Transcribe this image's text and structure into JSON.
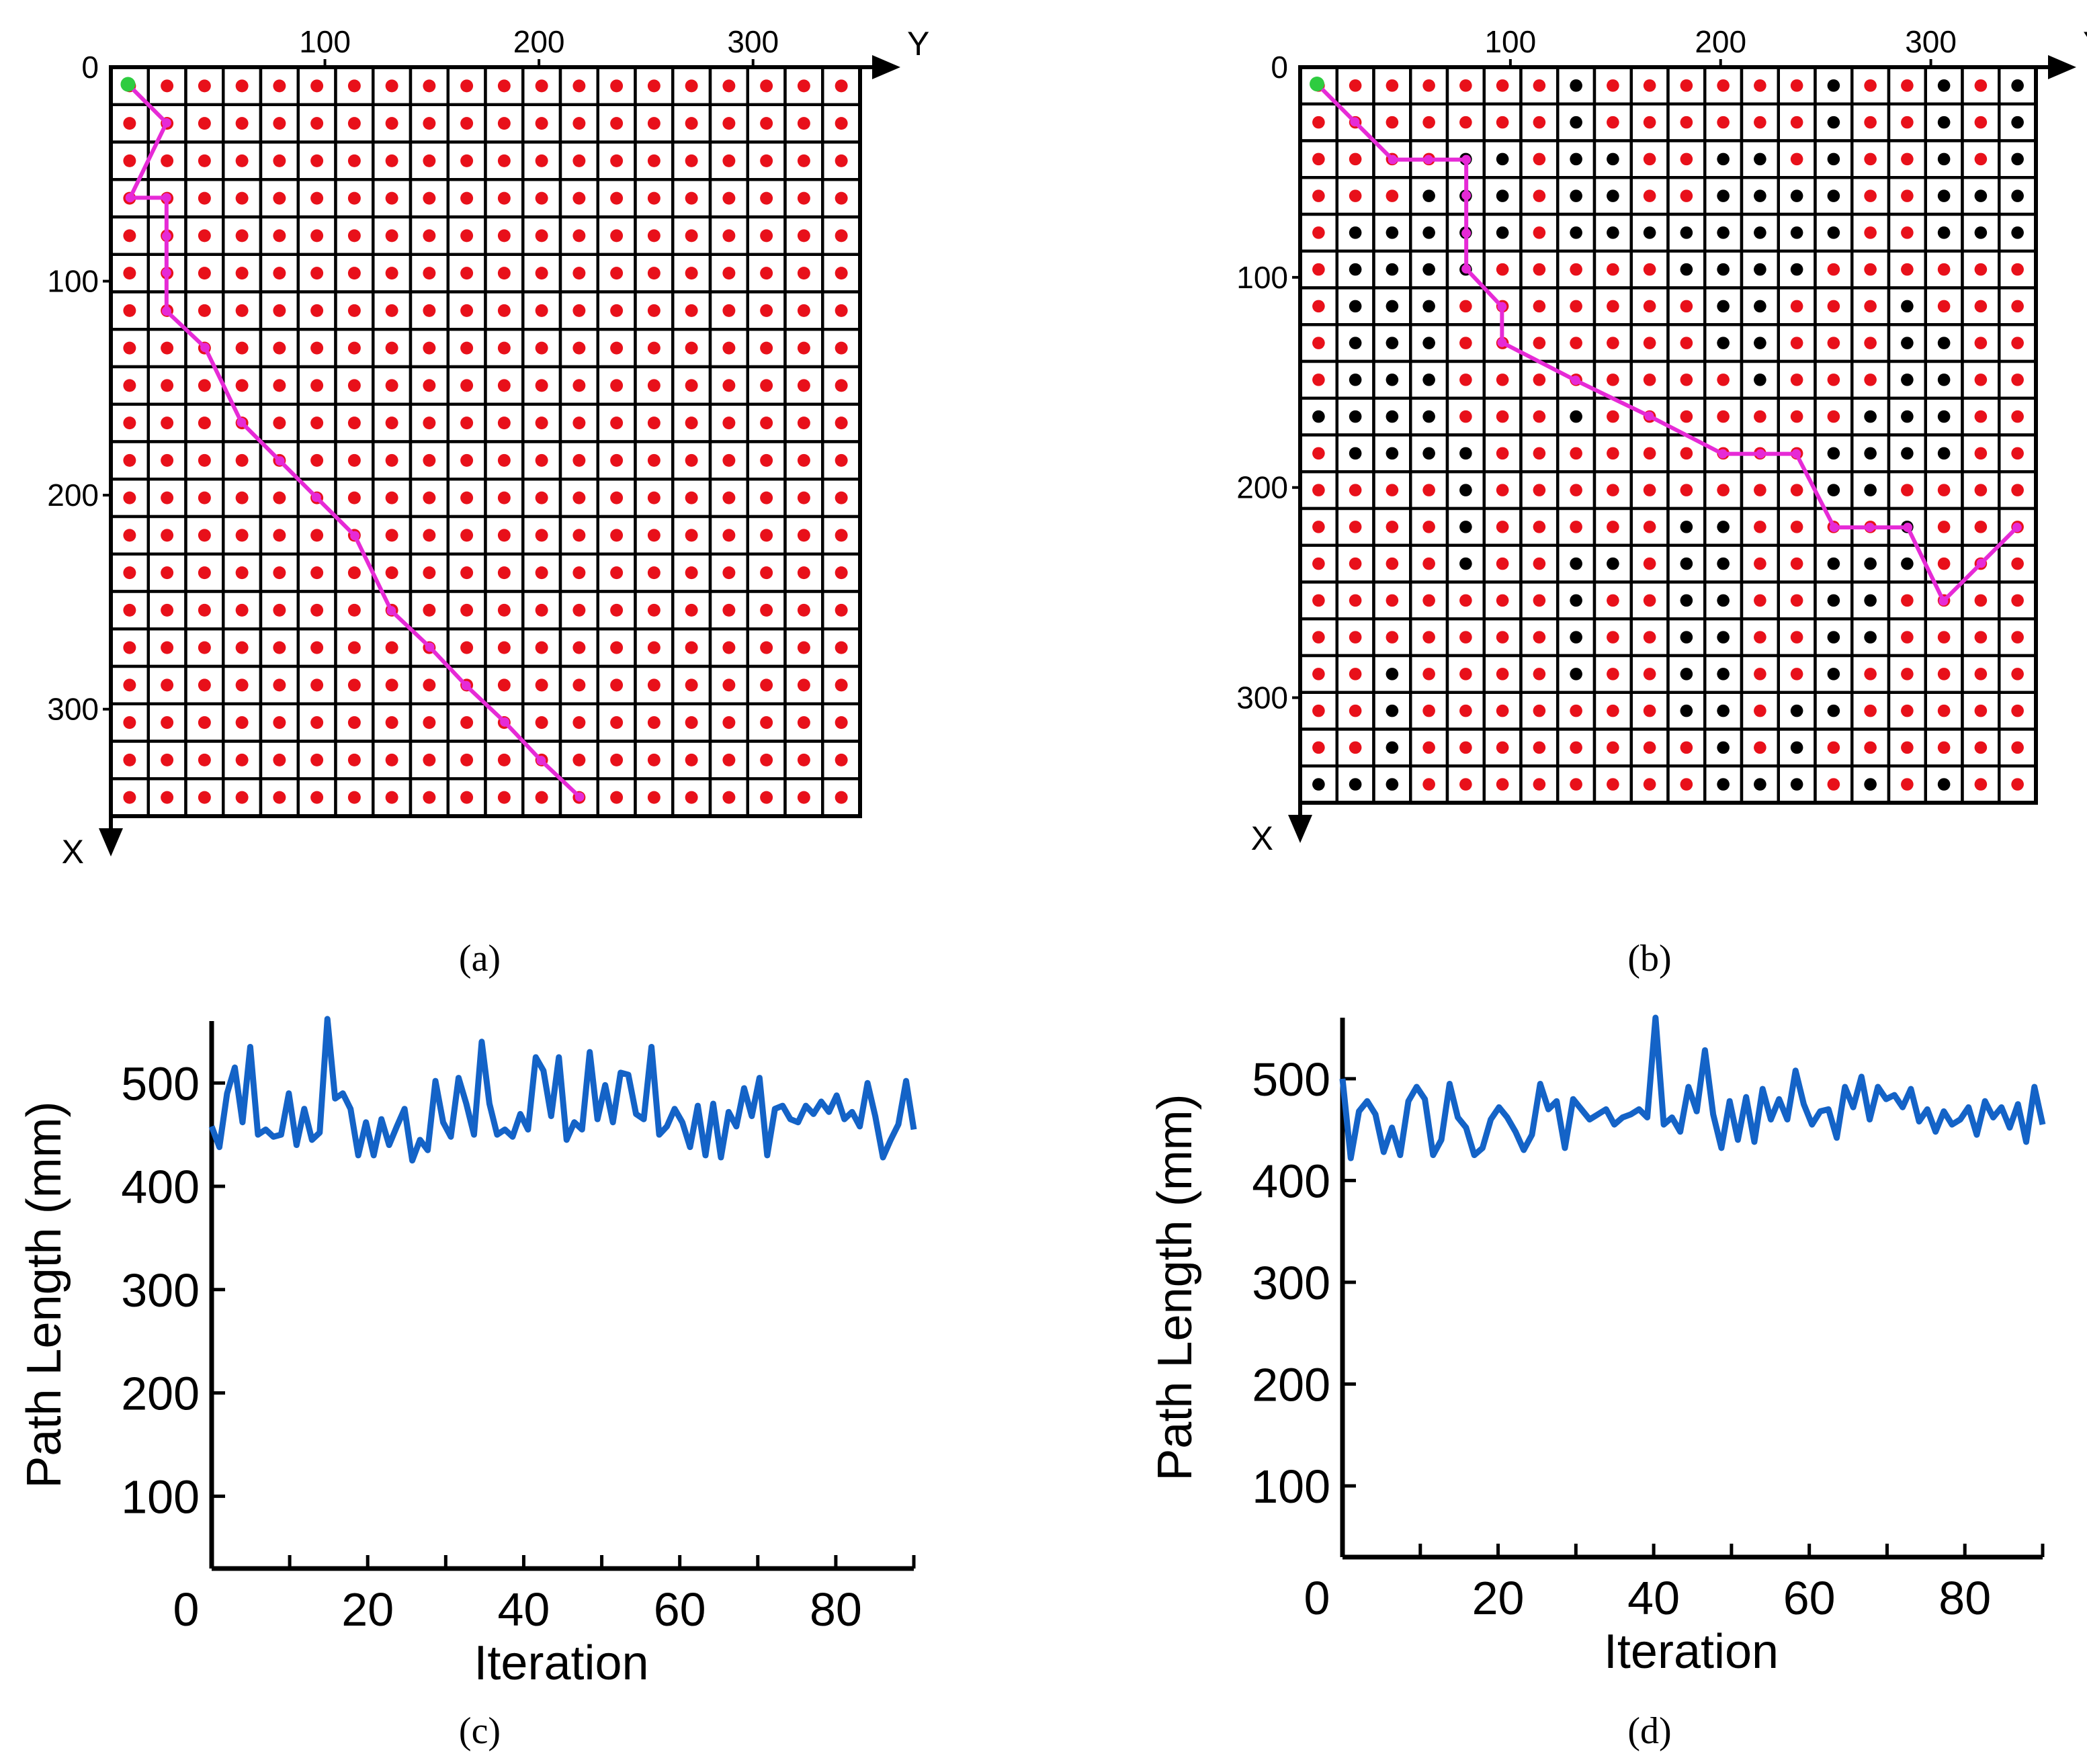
{
  "chart_data": [
    {
      "panel": "(a)",
      "type": "scatter",
      "title": "",
      "xlabel": "Y",
      "ylabel": "X",
      "x_ticks": [
        0,
        100,
        200,
        300
      ],
      "y_ticks": [
        0,
        100,
        200,
        300
      ],
      "xlim": [
        0,
        350
      ],
      "ylim": [
        0,
        350
      ],
      "grid_rows": 20,
      "grid_cols": 20,
      "cell_size": 17.5,
      "colors": {
        "free": "#e8101a",
        "obstacle": "#000000",
        "start": "#2ecc40",
        "path": "#e62ad6"
      },
      "start": [
        8,
        8
      ],
      "obstacles": [],
      "path": [
        [
          8,
          8
        ],
        [
          26,
          26
        ],
        [
          61,
          9
        ],
        [
          61,
          26
        ],
        [
          79,
          26
        ],
        [
          96,
          26
        ],
        [
          114,
          26
        ],
        [
          131,
          44
        ],
        [
          166,
          61
        ],
        [
          184,
          79
        ],
        [
          201,
          96
        ],
        [
          219,
          114
        ],
        [
          254,
          131
        ],
        [
          271,
          149
        ],
        [
          289,
          166
        ],
        [
          306,
          184
        ],
        [
          324,
          201
        ],
        [
          341,
          219
        ]
      ]
    },
    {
      "panel": "(b)",
      "type": "scatter",
      "title": "",
      "xlabel": "Y",
      "ylabel": "X",
      "x_ticks": [
        0,
        100,
        200,
        300
      ],
      "y_ticks": [
        0,
        100,
        200,
        300
      ],
      "xlim": [
        0,
        350
      ],
      "ylim": [
        0,
        350
      ],
      "grid_rows": 20,
      "grid_cols": 20,
      "cell_size": 17.5,
      "colors": {
        "free": "#e8101a",
        "obstacle": "#000000",
        "start": "#2ecc40",
        "path": "#e62ad6"
      },
      "start": [
        8,
        8
      ],
      "obstacles": [
        [
          0,
          7
        ],
        [
          0,
          14
        ],
        [
          0,
          17
        ],
        [
          0,
          19
        ],
        [
          1,
          7
        ],
        [
          1,
          14
        ],
        [
          1,
          17
        ],
        [
          1,
          19
        ],
        [
          2,
          4
        ],
        [
          2,
          5
        ],
        [
          2,
          7
        ],
        [
          2,
          8
        ],
        [
          2,
          11
        ],
        [
          2,
          12
        ],
        [
          2,
          14
        ],
        [
          2,
          17
        ],
        [
          2,
          19
        ],
        [
          3,
          3
        ],
        [
          3,
          4
        ],
        [
          3,
          5
        ],
        [
          3,
          7
        ],
        [
          3,
          8
        ],
        [
          3,
          11
        ],
        [
          3,
          12
        ],
        [
          3,
          13
        ],
        [
          3,
          14
        ],
        [
          3,
          17
        ],
        [
          3,
          18
        ],
        [
          3,
          19
        ],
        [
          4,
          1
        ],
        [
          4,
          2
        ],
        [
          4,
          3
        ],
        [
          4,
          4
        ],
        [
          4,
          5
        ],
        [
          4,
          7
        ],
        [
          4,
          8
        ],
        [
          4,
          9
        ],
        [
          4,
          10
        ],
        [
          4,
          11
        ],
        [
          4,
          12
        ],
        [
          4,
          13
        ],
        [
          4,
          14
        ],
        [
          4,
          17
        ],
        [
          4,
          18
        ],
        [
          4,
          19
        ],
        [
          5,
          1
        ],
        [
          5,
          2
        ],
        [
          5,
          3
        ],
        [
          5,
          4
        ],
        [
          5,
          10
        ],
        [
          5,
          11
        ],
        [
          5,
          12
        ],
        [
          5,
          13
        ],
        [
          6,
          1
        ],
        [
          6,
          2
        ],
        [
          6,
          3
        ],
        [
          6,
          11
        ],
        [
          6,
          12
        ],
        [
          6,
          16
        ],
        [
          7,
          1
        ],
        [
          7,
          2
        ],
        [
          7,
          3
        ],
        [
          7,
          11
        ],
        [
          7,
          12
        ],
        [
          7,
          16
        ],
        [
          7,
          17
        ],
        [
          8,
          1
        ],
        [
          8,
          2
        ],
        [
          8,
          3
        ],
        [
          8,
          12
        ],
        [
          8,
          16
        ],
        [
          8,
          17
        ],
        [
          9,
          0
        ],
        [
          9,
          1
        ],
        [
          9,
          2
        ],
        [
          9,
          3
        ],
        [
          9,
          7
        ],
        [
          9,
          15
        ],
        [
          9,
          16
        ],
        [
          9,
          17
        ],
        [
          10,
          1
        ],
        [
          10,
          2
        ],
        [
          10,
          3
        ],
        [
          10,
          4
        ],
        [
          10,
          14
        ],
        [
          10,
          15
        ],
        [
          10,
          16
        ],
        [
          10,
          17
        ],
        [
          11,
          4
        ],
        [
          11,
          14
        ],
        [
          11,
          15
        ],
        [
          12,
          4
        ],
        [
          12,
          10
        ],
        [
          12,
          11
        ],
        [
          12,
          16
        ],
        [
          13,
          4
        ],
        [
          13,
          7
        ],
        [
          13,
          8
        ],
        [
          13,
          10
        ],
        [
          13,
          11
        ],
        [
          13,
          14
        ],
        [
          13,
          15
        ],
        [
          13,
          16
        ],
        [
          14,
          7
        ],
        [
          14,
          10
        ],
        [
          14,
          11
        ],
        [
          14,
          14
        ],
        [
          14,
          15
        ],
        [
          15,
          7
        ],
        [
          15,
          10
        ],
        [
          15,
          11
        ],
        [
          15,
          14
        ],
        [
          15,
          15
        ],
        [
          16,
          2
        ],
        [
          16,
          7
        ],
        [
          16,
          10
        ],
        [
          16,
          11
        ],
        [
          16,
          14
        ],
        [
          17,
          2
        ],
        [
          17,
          10
        ],
        [
          17,
          11
        ],
        [
          17,
          13
        ],
        [
          17,
          14
        ],
        [
          18,
          2
        ],
        [
          18,
          11
        ],
        [
          18,
          13
        ],
        [
          19,
          0
        ],
        [
          19,
          1
        ],
        [
          19,
          2
        ],
        [
          19,
          11
        ],
        [
          19,
          12
        ],
        [
          19,
          13
        ],
        [
          19,
          15
        ],
        [
          19,
          17
        ]
      ],
      "path": [
        [
          8,
          8
        ],
        [
          26,
          26
        ],
        [
          44,
          44
        ],
        [
          44,
          61
        ],
        [
          44,
          79
        ],
        [
          61,
          79
        ],
        [
          79,
          79
        ],
        [
          96,
          79
        ],
        [
          114,
          96
        ],
        [
          131,
          96
        ],
        [
          149,
          131
        ],
        [
          166,
          166
        ],
        [
          184,
          201
        ],
        [
          184,
          219
        ],
        [
          184,
          236
        ],
        [
          219,
          254
        ],
        [
          219,
          271
        ],
        [
          219,
          289
        ],
        [
          254,
          306
        ],
        [
          236,
          324
        ],
        [
          219,
          341
        ]
      ]
    },
    {
      "panel": "(c)",
      "type": "line",
      "title": "",
      "xlabel": "Iteration",
      "ylabel": "Path Length (mm)",
      "xlim": [
        0,
        90
      ],
      "ylim": [
        30,
        560
      ],
      "x_ticks": [
        0,
        20,
        40,
        60,
        80
      ],
      "y_ticks": [
        100,
        200,
        300,
        400,
        500
      ],
      "x_minor_step": 10,
      "color": "#1463c7",
      "series": [
        {
          "name": "Path Length",
          "values": [
            458,
            438,
            490,
            515,
            462,
            535,
            450,
            455,
            448,
            450,
            490,
            440,
            475,
            445,
            452,
            562,
            485,
            490,
            475,
            430,
            462,
            430,
            465,
            440,
            458,
            475,
            425,
            445,
            435,
            502,
            462,
            448,
            505,
            480,
            450,
            540,
            480,
            450,
            455,
            448,
            470,
            455,
            525,
            512,
            468,
            525,
            445,
            462,
            455,
            530,
            465,
            498,
            462,
            510,
            508,
            470,
            465,
            535,
            450,
            458,
            475,
            462,
            438,
            478,
            430,
            480,
            428,
            472,
            458,
            495,
            468,
            505,
            430,
            475,
            478,
            465,
            462,
            478,
            470,
            482,
            472,
            488,
            465,
            472,
            458,
            500,
            468,
            428,
            445,
            460,
            502,
            455
          ]
        }
      ]
    },
    {
      "panel": "(d)",
      "type": "line",
      "title": "",
      "xlabel": "Iteration",
      "ylabel": "Path Length (mm)",
      "xlim": [
        0,
        90
      ],
      "ylim": [
        30,
        560
      ],
      "x_ticks": [
        0,
        20,
        40,
        60,
        80
      ],
      "y_ticks": [
        100,
        200,
        300,
        400,
        500
      ],
      "x_minor_step": 10,
      "color": "#1463c7",
      "series": [
        {
          "name": "Path Length",
          "values": [
            500,
            422,
            468,
            478,
            465,
            428,
            452,
            425,
            478,
            492,
            480,
            425,
            440,
            495,
            462,
            452,
            425,
            432,
            460,
            472,
            462,
            448,
            430,
            445,
            495,
            470,
            478,
            432,
            480,
            470,
            460,
            465,
            470,
            455,
            462,
            465,
            470,
            462,
            560,
            455,
            462,
            448,
            492,
            468,
            528,
            465,
            432,
            478,
            440,
            482,
            438,
            490,
            460,
            480,
            460,
            508,
            475,
            455,
            468,
            470,
            442,
            492,
            472,
            502,
            460,
            492,
            480,
            484,
            472,
            490,
            458,
            470,
            448,
            468,
            455,
            460,
            472,
            445,
            478,
            462,
            472,
            452,
            475,
            438,
            492,
            455
          ]
        }
      ]
    }
  ],
  "captions": [
    "(a)",
    "(b)",
    "(c)",
    "(d)"
  ]
}
